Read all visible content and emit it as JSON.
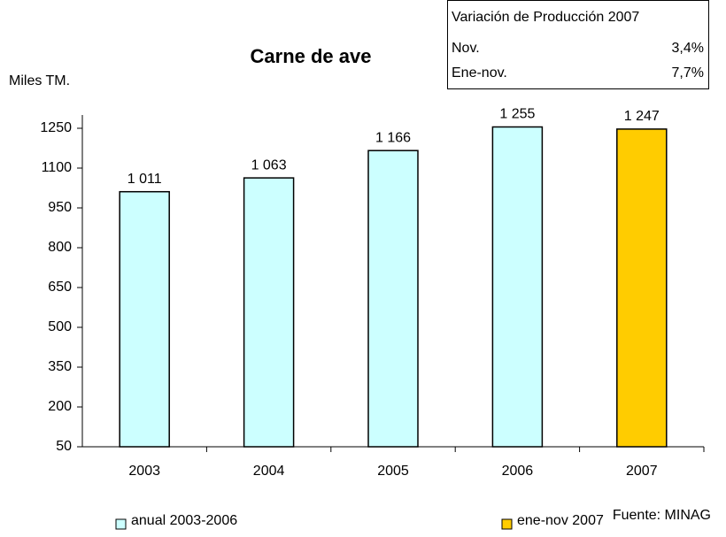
{
  "chart_data": {
    "type": "bar",
    "title": "Carne de ave",
    "y_label": "Miles TM.",
    "source": "Fuente: MINAG",
    "categories": [
      "2003",
      "2004",
      "2005",
      "2006",
      "2007"
    ],
    "series": [
      {
        "name": "anual 2003-2006",
        "color": "#ccffff",
        "values": [
          1011,
          1063,
          1166,
          1255,
          null
        ],
        "value_labels": [
          "1 011",
          "1 063",
          "1 166",
          "1 255",
          null
        ]
      },
      {
        "name": "ene-nov 2007",
        "color": "#ffcc00",
        "values": [
          null,
          null,
          null,
          null,
          1247
        ],
        "value_labels": [
          null,
          null,
          null,
          null,
          "1 247"
        ]
      }
    ],
    "ylim": [
      50,
      1300
    ],
    "yticks": [
      50,
      200,
      350,
      500,
      650,
      800,
      950,
      1100,
      1250
    ],
    "info_table": {
      "title": "Variación de Producción 2007",
      "rows": [
        [
          "Nov.",
          "3,4%"
        ],
        [
          "Ene-nov.",
          "7,7%"
        ]
      ]
    }
  }
}
